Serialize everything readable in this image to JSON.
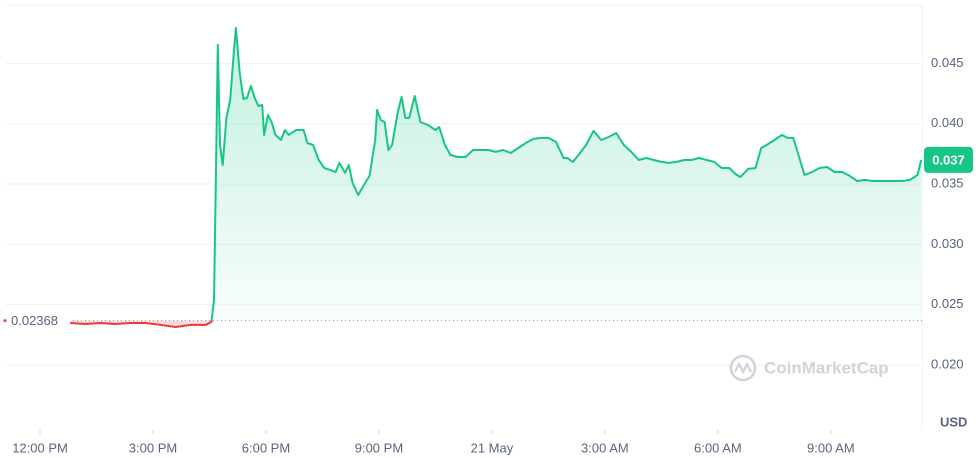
{
  "chart_data": {
    "type": "line",
    "x": [
      12.8,
      13.2,
      13.6,
      14.0,
      14.4,
      14.8,
      15.2,
      15.6,
      16.0,
      16.4,
      16.55,
      16.62,
      16.68,
      16.72,
      16.78,
      16.85,
      16.95,
      17.05,
      17.15,
      17.2,
      17.3,
      17.4,
      17.5,
      17.6,
      17.7,
      17.8,
      17.9,
      17.95,
      18.05,
      18.15,
      18.25,
      18.4,
      18.5,
      18.6,
      18.8,
      19.0,
      19.1,
      19.25,
      19.4,
      19.55,
      19.7,
      19.85,
      19.95,
      20.1,
      20.2,
      20.3,
      20.45,
      20.6,
      20.75,
      20.9,
      20.95,
      21.05,
      21.15,
      21.25,
      21.35,
      21.5,
      21.6,
      21.7,
      21.8,
      21.95,
      22.1,
      22.3,
      22.5,
      22.6,
      22.75,
      22.9,
      23.1,
      23.3,
      23.5,
      23.7,
      23.9,
      24.1,
      24.3,
      24.5,
      24.7,
      24.9,
      25.1,
      25.3,
      25.5,
      25.7,
      25.9,
      26.0,
      26.15,
      26.3,
      26.5,
      26.7,
      26.9,
      27.1,
      27.3,
      27.5,
      27.7,
      27.9,
      28.1,
      28.3,
      28.5,
      28.7,
      28.9,
      29.1,
      29.3,
      29.5,
      29.7,
      29.9,
      30.1,
      30.3,
      30.5,
      30.6,
      30.8,
      31.0,
      31.15,
      31.3,
      31.5,
      31.7,
      31.85,
      32.0,
      32.1,
      32.3,
      32.5,
      32.7,
      32.9,
      33.1,
      33.3,
      33.5,
      33.7,
      33.9,
      34.1,
      34.3,
      34.5,
      34.7,
      34.9,
      35.1,
      35.3,
      35.4
    ],
    "series": [
      {
        "color": "#16c784",
        "down_color": "#ea3943",
        "values": [
          0.02348,
          0.0234,
          0.02348,
          0.0234,
          0.02348,
          0.02348,
          0.02332,
          0.02315,
          0.02332,
          0.02332,
          0.02356,
          0.02539,
          0.03782,
          0.04653,
          0.03824,
          0.03658,
          0.04048,
          0.04197,
          0.04611,
          0.04794,
          0.04429,
          0.04205,
          0.04213,
          0.04313,
          0.04213,
          0.04147,
          0.04155,
          0.03907,
          0.04073,
          0.04014,
          0.03907,
          0.03865,
          0.03948,
          0.03907,
          0.03948,
          0.03948,
          0.0384,
          0.03824,
          0.03699,
          0.03633,
          0.03617,
          0.036,
          0.03675,
          0.03592,
          0.03658,
          0.03509,
          0.03409,
          0.03492,
          0.03567,
          0.03865,
          0.04114,
          0.04031,
          0.04014,
          0.03782,
          0.03824,
          0.04097,
          0.04222,
          0.04048,
          0.04048,
          0.0423,
          0.04014,
          0.0399,
          0.03948,
          0.03973,
          0.03824,
          0.03741,
          0.03724,
          0.03724,
          0.03782,
          0.03782,
          0.03782,
          0.03766,
          0.03782,
          0.03757,
          0.03799,
          0.0384,
          0.03874,
          0.03882,
          0.03882,
          0.03849,
          0.03716,
          0.03716,
          0.03683,
          0.03741,
          0.03824,
          0.0394,
          0.03865,
          0.0389,
          0.03923,
          0.03824,
          0.03766,
          0.03699,
          0.03716,
          0.03699,
          0.03683,
          0.03675,
          0.03683,
          0.03699,
          0.03699,
          0.03716,
          0.03699,
          0.03683,
          0.03633,
          0.03633,
          0.03575,
          0.03558,
          0.03625,
          0.03633,
          0.03799,
          0.03824,
          0.03865,
          0.03907,
          0.03882,
          0.03882,
          0.03782,
          0.03575,
          0.036,
          0.03633,
          0.03641,
          0.036,
          0.036,
          0.03567,
          0.03525,
          0.03534,
          0.03525,
          0.03525,
          0.03525,
          0.03525,
          0.03525,
          0.03534,
          0.03575,
          0.037
        ]
      }
    ],
    "baseline": 0.02368,
    "last_price": 0.037,
    "unit": "USD",
    "watermark": "CoinMarketCap",
    "xlim": [
      11.07,
      35.42
    ],
    "xticks": [
      {
        "value": 12,
        "label": "12:00 PM"
      },
      {
        "value": 15,
        "label": "3:00 PM"
      },
      {
        "value": 18,
        "label": "6:00 PM"
      },
      {
        "value": 21,
        "label": "9:00 PM"
      },
      {
        "value": 24,
        "label": "21 May"
      },
      {
        "value": 27,
        "label": "3:00 AM"
      },
      {
        "value": 30,
        "label": "6:00 AM"
      },
      {
        "value": 33,
        "label": "9:00 AM"
      }
    ],
    "ylim": [
      0.01461,
      0.04984
    ],
    "yticks": [
      {
        "value": 0.02,
        "label": "0.020"
      },
      0.025,
      {
        "value": 0.03,
        "label": "0.030"
      },
      0.035,
      {
        "value": 0.04,
        "label": "0.040"
      },
      0.045
    ],
    "grid": true
  }
}
